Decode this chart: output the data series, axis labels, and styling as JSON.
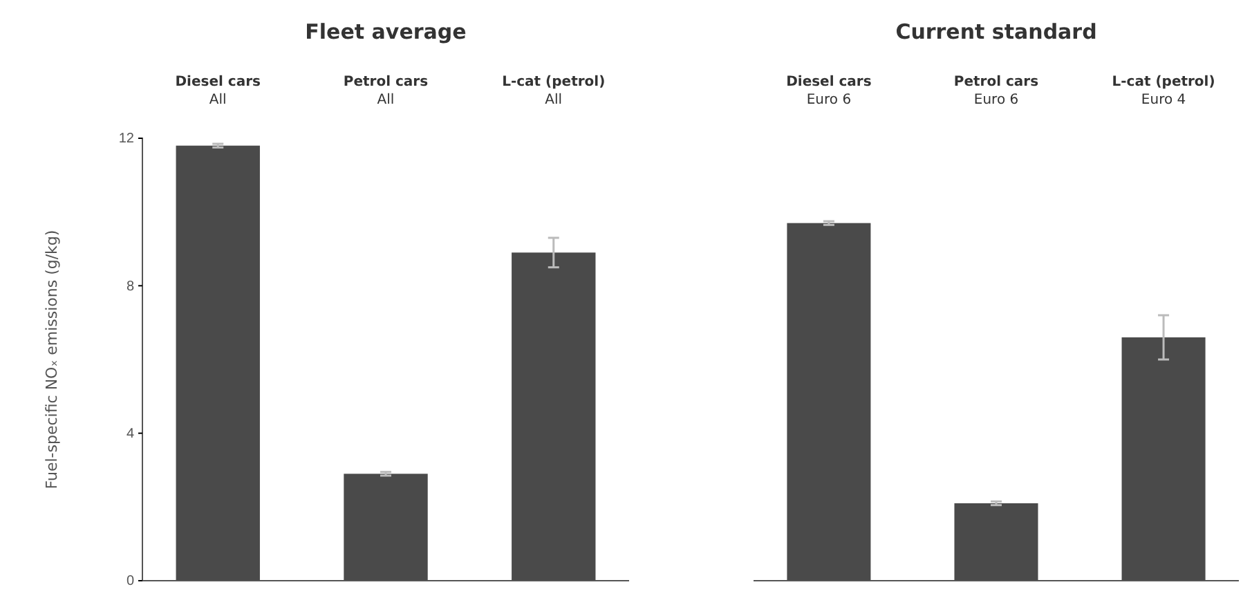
{
  "chart_data": [
    {
      "type": "bar",
      "title": "Fleet average",
      "ylabel": "Fuel-specific NOₓ emissions (g/kg)",
      "categories": [
        "Diesel cars\nAll",
        "Petrol cars\nAll",
        "L-cat (petrol)\nAll"
      ],
      "values": [
        11.8,
        2.9,
        8.9
      ],
      "errors": [
        0.05,
        0.05,
        0.4
      ],
      "color": "#4a4a4a",
      "ylim": [
        0,
        12
      ],
      "yticks": [
        0,
        4,
        8,
        12
      ]
    },
    {
      "type": "bar",
      "title": "Current standard",
      "categories": [
        "Diesel cars\nEuro 6",
        "Petrol cars\nEuro 6",
        "L-cat (petrol)\nEuro 4"
      ],
      "values": [
        9.7,
        2.1,
        6.6
      ],
      "errors": [
        0.05,
        0.05,
        0.6
      ],
      "color": "#4a4a4a",
      "ylim": [
        0,
        12
      ],
      "yticks": [
        0,
        4,
        8,
        12
      ],
      "tick_labels": "x"
    }
  ]
}
